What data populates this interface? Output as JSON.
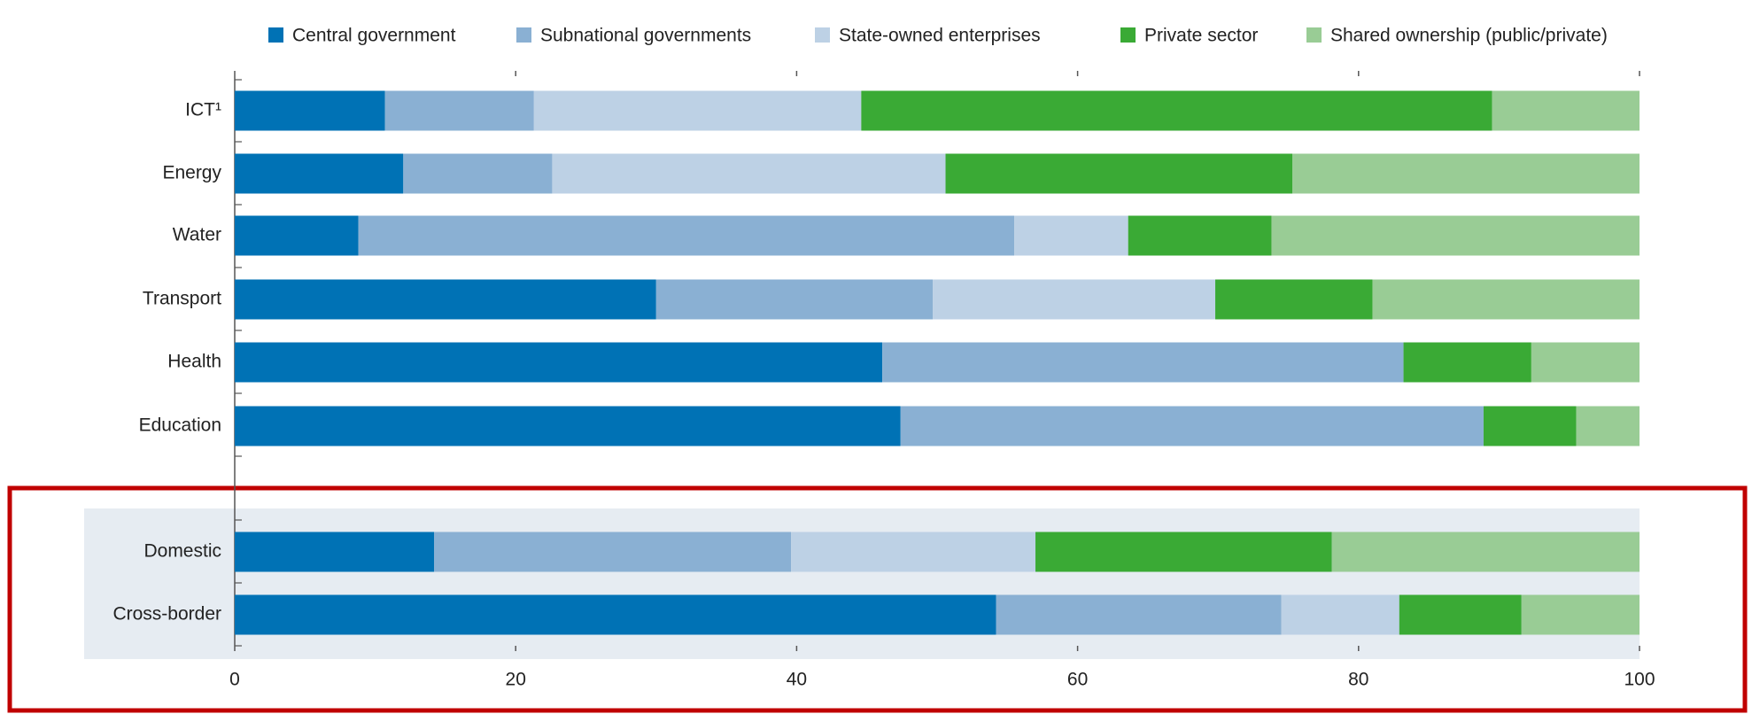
{
  "chart_data": {
    "type": "stacked-barh",
    "categories": [
      "ICT¹",
      "Energy",
      "Water",
      "Transport",
      "Health",
      "Education",
      "Domestic",
      "Cross-border"
    ],
    "series": [
      {
        "name": "Central government",
        "color": "#0072b5",
        "values": [
          10.7,
          12.0,
          8.8,
          30.0,
          46.1,
          47.4,
          14.2,
          54.2
        ]
      },
      {
        "name": "Subnational governments",
        "color": "#8ab0d3",
        "values": [
          10.6,
          10.6,
          46.7,
          19.7,
          37.1,
          41.5,
          25.4,
          20.3
        ]
      },
      {
        "name": "State-owned enterprises",
        "color": "#bdd1e5",
        "values": [
          23.3,
          28.0,
          8.1,
          20.1,
          0,
          0,
          17.4,
          8.4
        ]
      },
      {
        "name": "Private sector",
        "color": "#3aaa35",
        "values": [
          44.9,
          24.7,
          10.2,
          11.2,
          9.1,
          6.6,
          21.1,
          8.7
        ]
      },
      {
        "name": "Shared ownership (public/private)",
        "color": "#99cc95",
        "values": [
          10.5,
          24.7,
          26.2,
          19.0,
          7.7,
          4.5,
          21.9,
          8.4
        ]
      }
    ],
    "xlim": [
      0,
      100
    ],
    "xticks": [
      0,
      20,
      40,
      60,
      80,
      100
    ]
  }
}
